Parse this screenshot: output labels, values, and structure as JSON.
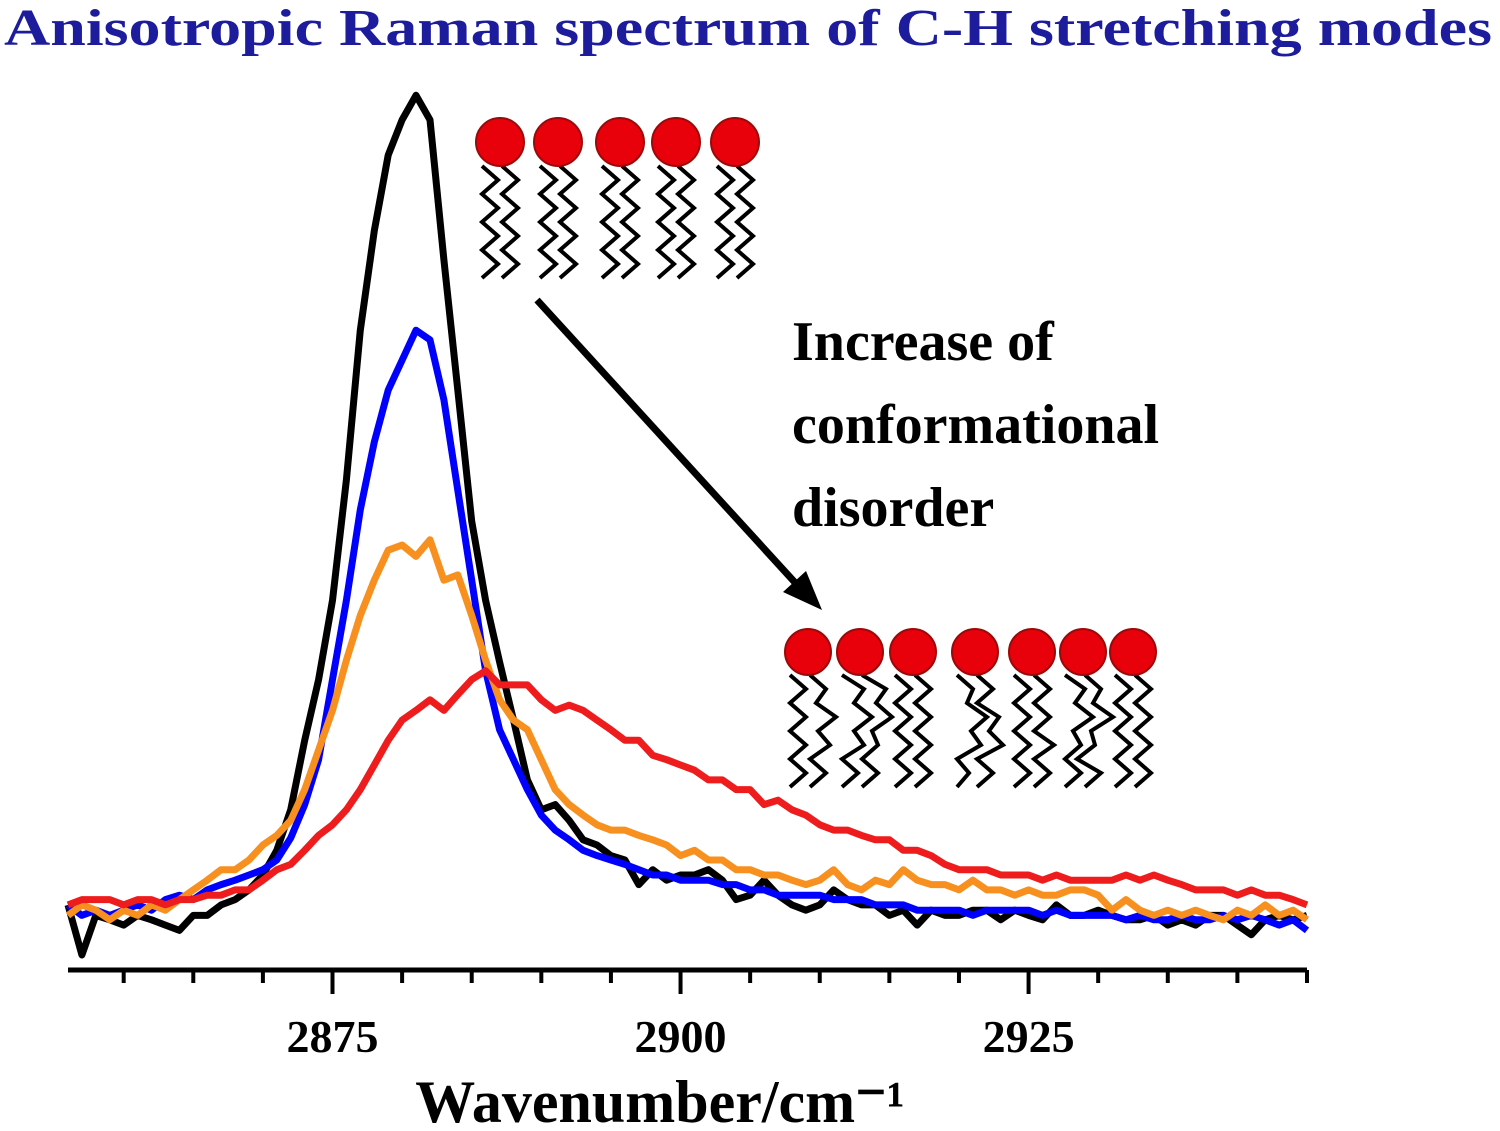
{
  "chart_data": {
    "type": "line",
    "title": "Anisotropic Raman spectrum of C-H stretching modes",
    "xlabel": "Wavenumber/cm⁻¹",
    "annotation": [
      "Increase of",
      "conformational",
      "disorder"
    ],
    "xlim": [
      2856,
      2945
    ],
    "ylim": [
      0,
      100
    ],
    "xticks": [
      2875,
      2900,
      2925
    ],
    "xminorticks": [
      2860,
      2865,
      2870,
      2880,
      2885,
      2890,
      2895,
      2905,
      2910,
      2915,
      2920,
      2930,
      2935,
      2940,
      2945
    ],
    "x": [
      2856,
      2857,
      2858,
      2859,
      2860,
      2861,
      2862,
      2863,
      2864,
      2865,
      2866,
      2867,
      2868,
      2869,
      2870,
      2871,
      2872,
      2873,
      2874,
      2875,
      2876,
      2877,
      2878,
      2879,
      2880,
      2881,
      2882,
      2883,
      2884,
      2885,
      2886,
      2887,
      2888,
      2889,
      2890,
      2891,
      2892,
      2893,
      2894,
      2895,
      2896,
      2897,
      2898,
      2899,
      2900,
      2901,
      2902,
      2903,
      2904,
      2905,
      2906,
      2907,
      2908,
      2909,
      2910,
      2911,
      2912,
      2913,
      2914,
      2915,
      2916,
      2917,
      2918,
      2919,
      2920,
      2921,
      2922,
      2923,
      2924,
      2925,
      2926,
      2927,
      2928,
      2929,
      2930,
      2931,
      2932,
      2933,
      2934,
      2935,
      2936,
      2937,
      2938,
      2939,
      2940,
      2941,
      2942,
      2943,
      2944,
      2945
    ],
    "series": [
      {
        "color": "#000000",
        "values": [
          7.4,
          1.7,
          6.2,
          5.7,
          5.1,
          6.2,
          5.7,
          5.1,
          4.5,
          6.2,
          6.2,
          7.4,
          8,
          9.1,
          10.8,
          13.6,
          18.2,
          26.1,
          33,
          42,
          55.7,
          72.7,
          84,
          92.6,
          96.6,
          99.4,
          96.6,
          80.7,
          65.9,
          51,
          42,
          35,
          28.4,
          21.6,
          18.2,
          18.8,
          17,
          14.8,
          14.2,
          13,
          12.5,
          9.7,
          11.4,
          10.2,
          10.8,
          10.8,
          11.4,
          10.2,
          8,
          8.5,
          10.2,
          8.5,
          7.4,
          6.8,
          7.4,
          9.1,
          8,
          7.4,
          7.4,
          6.2,
          6.8,
          5.1,
          6.8,
          6.2,
          6.2,
          6.8,
          6.8,
          5.7,
          6.8,
          6.2,
          5.7,
          7.4,
          6.2,
          6.2,
          6.8,
          6.2,
          5.7,
          5.7,
          6.2,
          5.1,
          5.7,
          5.1,
          6.2,
          6.2,
          5.1,
          4,
          5.7,
          6.2,
          5.7,
          6.2
        ]
      },
      {
        "color": "#0000ff",
        "values": [
          7.4,
          6.2,
          6.8,
          6.2,
          6.8,
          7.4,
          6.8,
          8,
          8.5,
          8,
          9.1,
          9.7,
          10.2,
          10.8,
          11.4,
          12.5,
          15,
          18.8,
          23.9,
          33,
          42,
          52.3,
          60,
          65.9,
          69.3,
          72.7,
          71.6,
          64.8,
          54.5,
          44.3,
          34,
          27.3,
          23.9,
          20.5,
          17.6,
          15.9,
          14.8,
          13.6,
          13,
          12.5,
          12,
          11.4,
          10.8,
          10.8,
          10.2,
          10.2,
          10.2,
          9.7,
          9.7,
          9.1,
          9.1,
          8.5,
          8.5,
          8.5,
          8.5,
          8,
          8,
          8,
          7.4,
          7.4,
          7.4,
          6.8,
          6.8,
          6.8,
          6.8,
          6.2,
          6.8,
          6.8,
          6.8,
          6.8,
          6.2,
          6.8,
          6.2,
          6.2,
          6.2,
          6.2,
          5.7,
          6.2,
          5.7,
          5.7,
          6.2,
          5.7,
          5.7,
          6.2,
          5.7,
          6.2,
          5.7,
          5.1,
          5.7,
          4.5
        ]
      },
      {
        "color": "#f7901e",
        "values": [
          6.2,
          7.4,
          6.8,
          5.7,
          6.8,
          6.2,
          7.4,
          6.8,
          8,
          9.1,
          10.2,
          11.4,
          11.4,
          12.5,
          14.2,
          15.3,
          17,
          20.5,
          25,
          29.5,
          35.2,
          40.3,
          44.3,
          47.7,
          48.3,
          47,
          48.9,
          44.3,
          44.9,
          40.3,
          35.2,
          30.7,
          28.4,
          27.3,
          23.9,
          20.5,
          18.8,
          17.6,
          16.5,
          15.9,
          15.9,
          15.3,
          14.8,
          14.2,
          13,
          13.6,
          12.5,
          12.5,
          11.4,
          11.4,
          10.8,
          10.8,
          10.2,
          9.7,
          10.2,
          11.4,
          9.7,
          9.1,
          10.2,
          9.7,
          11.4,
          10.2,
          9.7,
          9.7,
          9.1,
          10.2,
          9.1,
          9.1,
          8.5,
          9.1,
          8.5,
          8.5,
          9.1,
          9.1,
          8.5,
          6.8,
          8,
          6.8,
          6.2,
          6.8,
          6.2,
          6.8,
          6.2,
          5.7,
          6.8,
          6.2,
          7.4,
          6.2,
          6.8,
          5.7
        ]
      },
      {
        "color": "#ee1c1c",
        "values": [
          7.4,
          8,
          8,
          8,
          7.4,
          8,
          8,
          7.4,
          8,
          8,
          8.5,
          8.5,
          9.1,
          9.1,
          10.2,
          11.4,
          12,
          13.6,
          15.3,
          16.5,
          18.2,
          20.5,
          23.3,
          26.1,
          28.4,
          29.5,
          30.7,
          29.5,
          31.3,
          33,
          34,
          32.4,
          32.4,
          32.4,
          30.7,
          29.5,
          30.1,
          29.5,
          28.4,
          27.3,
          26.1,
          26.1,
          24.4,
          23.9,
          23.3,
          22.7,
          21.6,
          21.6,
          20.5,
          20.5,
          18.8,
          19.3,
          18.2,
          17.6,
          16.5,
          15.9,
          15.9,
          15.3,
          14.8,
          14.8,
          13.6,
          13.6,
          13,
          12,
          11.4,
          11.4,
          11.4,
          10.8,
          10.8,
          10.8,
          10.2,
          10.8,
          10.2,
          10.2,
          10.2,
          10.2,
          10.8,
          10.2,
          10.8,
          10.2,
          9.7,
          9.1,
          9.1,
          9.1,
          8.5,
          9.1,
          8.5,
          8.5,
          8,
          7.4
        ]
      }
    ]
  }
}
